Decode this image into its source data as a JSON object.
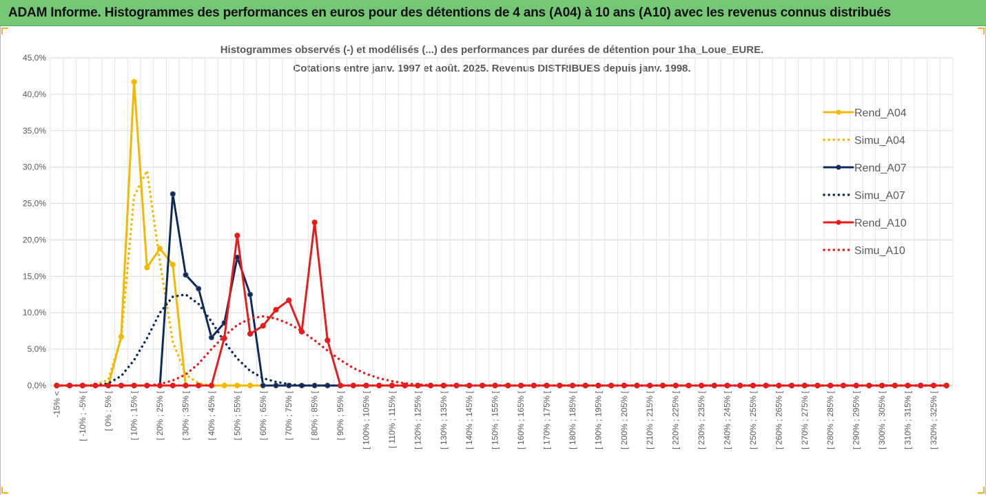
{
  "banner": {
    "title": "ADAM Informe. Histogrammes des performances en euros pour des détentions de 4 ans (A04) à 10 ans (A10) avec les revenus connus distribués"
  },
  "chart_data": {
    "type": "line",
    "title": "Histogrammes observés (-) et modélisés (...) des performances par durées de détention pour 1ha_Loue_EURE.",
    "subtitle": "Cotations entre janv. 1997 et août. 2025. Revenus DISTRIBUES depuis janv. 1998.",
    "ylim": [
      0,
      45
    ],
    "yticks": [
      "0,0%",
      "5,0%",
      "10,0%",
      "15,0%",
      "20,0%",
      "25,0%",
      "30,0%",
      "35,0%",
      "40,0%",
      "45,0%"
    ],
    "grid": true,
    "legend_position": "right",
    "categories": [
      "-15% <",
      "[ -15% ; -10% [",
      "[ -10% ; -5% [",
      "[ -5% ; 0% [",
      "[ 0% ; 5% [",
      "[ 5% ; 10% [",
      "[ 10% ; 15% [",
      "[ 15% ; 20% [",
      "[ 20% ; 25% [",
      "[ 25% ; 30% [",
      "[ 30% ; 35% [",
      "[ 35% ; 40% [",
      "[ 40% ; 45% [",
      "[ 45% ; 50% [",
      "[ 50% ; 55% [",
      "[ 55% ; 60% [",
      "[ 60% ; 65% [",
      "[ 65% ; 70% [",
      "[ 70% ; 75% [",
      "[ 75% ; 80% [",
      "[ 80% ; 85% [",
      "[ 85% ; 90% [",
      "[ 90% ; 95% [",
      "[ 95% ; 100% [",
      "[ 100% ; 105% [",
      "[ 105% ; 110% [",
      "[ 110% ; 115% [",
      "[ 115% ; 120% [",
      "[ 120% ; 125% [",
      "[ 125% ; 130% [",
      "[ 130% ; 135% [",
      "[ 135% ; 140% [",
      "[ 140% ; 145% [",
      "[ 145% ; 150% [",
      "[ 150% ; 155% [",
      "[ 155% ; 160% [",
      "[ 160% ; 165% [",
      "[ 165% ; 170% [",
      "[ 170% ; 175% [",
      "[ 175% ; 180% [",
      "[ 180% ; 185% [",
      "[ 185% ; 190% [",
      "[ 190% ; 195% [",
      "[ 195% ; 200% [",
      "[ 200% ; 205% [",
      "[ 205% ; 210% [",
      "[ 210% ; 215% [",
      "[ 215% ; 220% [",
      "[ 220% ; 225% [",
      "[ 225% ; 230% [",
      "[ 230% ; 235% [",
      "[ 235% ; 240% [",
      "[ 240% ; 245% [",
      "[ 245% ; 250% [",
      "[ 250% ; 255% [",
      "[ 255% ; 260% [",
      "[ 260% ; 265% [",
      "[ 265% ; 270% [",
      "[ 270% ; 275% [",
      "[ 275% ; 280% [",
      "[ 280% ; 285% [",
      "[ 285% ; 290% [",
      "[ 290% ; 295% [",
      "[ 295% ; 300% [",
      "[ 300% ; 305% [",
      "[ 305% ; 310% [",
      "[ 310% ; 315% [",
      "[ 315% ; 320% [",
      "[ 320% ; 325% [",
      "[ 325% ; 330% ["
    ],
    "series": [
      {
        "name": "Rend_A04",
        "color": "#f5b800",
        "style": "solid",
        "markers": true,
        "values": [
          0,
          0,
          0,
          0,
          0,
          6.7,
          41.7,
          16.2,
          18.8,
          16.6,
          0,
          0,
          0,
          0,
          0,
          0,
          0,
          0,
          0,
          0,
          0,
          0,
          0,
          0,
          0,
          0,
          0,
          0,
          0,
          0,
          0,
          0,
          0,
          0,
          0,
          0,
          0,
          0,
          0,
          0,
          0,
          0,
          0,
          0,
          0,
          0,
          0,
          0,
          0,
          0,
          0,
          0,
          0,
          0,
          0,
          0,
          0,
          0,
          0,
          0,
          0,
          0,
          0,
          0,
          0,
          0,
          0,
          0,
          0,
          0
        ]
      },
      {
        "name": "Simu_A04",
        "color": "#f5b800",
        "style": "dotted",
        "markers": false,
        "values": [
          0,
          0,
          0,
          0.1,
          0.8,
          6.5,
          26,
          29.5,
          17,
          6,
          1.5,
          0.3,
          0,
          0,
          0,
          0,
          0,
          0,
          0,
          0,
          0,
          0,
          0,
          0,
          0,
          0,
          0,
          0,
          0,
          0,
          0,
          0,
          0,
          0,
          0,
          0,
          0,
          0,
          0,
          0,
          0,
          0,
          0,
          0,
          0,
          0,
          0,
          0,
          0,
          0,
          0,
          0,
          0,
          0,
          0,
          0,
          0,
          0,
          0,
          0,
          0,
          0,
          0,
          0,
          0,
          0,
          0,
          0,
          0,
          0
        ]
      },
      {
        "name": "Rend_A07",
        "color": "#0d2a5b",
        "style": "solid",
        "markers": true,
        "values": [
          0,
          0,
          0,
          0,
          0,
          0,
          0,
          0,
          0,
          26.3,
          15.2,
          13.3,
          6.6,
          8.6,
          17.6,
          12.5,
          0,
          0,
          0,
          0,
          0,
          0,
          0,
          0,
          0,
          0,
          0,
          0,
          0,
          0,
          0,
          0,
          0,
          0,
          0,
          0,
          0,
          0,
          0,
          0,
          0,
          0,
          0,
          0,
          0,
          0,
          0,
          0,
          0,
          0,
          0,
          0,
          0,
          0,
          0,
          0,
          0,
          0,
          0,
          0,
          0,
          0,
          0,
          0,
          0,
          0,
          0,
          0,
          0,
          0
        ]
      },
      {
        "name": "Simu_A07",
        "color": "#0d2a5b",
        "style": "dotted",
        "markers": false,
        "values": [
          0,
          0,
          0,
          0,
          0.3,
          1.3,
          3.5,
          6.5,
          10,
          12.2,
          12.5,
          11.2,
          8.8,
          6,
          3.7,
          2,
          1,
          0.5,
          0.2,
          0,
          0,
          0,
          0,
          0,
          0,
          0,
          0,
          0,
          0,
          0,
          0,
          0,
          0,
          0,
          0,
          0,
          0,
          0,
          0,
          0,
          0,
          0,
          0,
          0,
          0,
          0,
          0,
          0,
          0,
          0,
          0,
          0,
          0,
          0,
          0,
          0,
          0,
          0,
          0,
          0,
          0,
          0,
          0,
          0,
          0,
          0,
          0,
          0,
          0,
          0
        ]
      },
      {
        "name": "Rend_A10",
        "color": "#e81b1b",
        "style": "solid",
        "markers": true,
        "values": [
          0,
          0,
          0,
          0,
          0,
          0,
          0,
          0,
          0,
          0,
          0,
          0,
          0,
          6.5,
          20.6,
          7.1,
          8.2,
          10.4,
          11.7,
          7.4,
          22.4,
          6.2,
          0,
          0,
          0,
          0,
          0,
          0,
          0,
          0,
          0,
          0,
          0,
          0,
          0,
          0,
          0,
          0,
          0,
          0,
          0,
          0,
          0,
          0,
          0,
          0,
          0,
          0,
          0,
          0,
          0,
          0,
          0,
          0,
          0,
          0,
          0,
          0,
          0,
          0,
          0,
          0,
          0,
          0,
          0,
          0,
          0,
          0,
          0,
          0
        ]
      },
      {
        "name": "Simu_A10",
        "color": "#e81b1b",
        "style": "dotted",
        "markers": false,
        "values": [
          0,
          0,
          0,
          0,
          0,
          0,
          0,
          0,
          0.2,
          0.7,
          1.5,
          3,
          5,
          6.8,
          8.3,
          9.2,
          9.5,
          9.2,
          8.5,
          7.5,
          6.2,
          4.8,
          3.5,
          2.4,
          1.6,
          1,
          0.6,
          0.3,
          0.15,
          0.05,
          0,
          0,
          0,
          0,
          0,
          0,
          0,
          0,
          0,
          0,
          0,
          0,
          0,
          0,
          0,
          0,
          0,
          0,
          0,
          0,
          0,
          0,
          0,
          0,
          0,
          0,
          0,
          0,
          0,
          0,
          0,
          0,
          0,
          0,
          0,
          0,
          0,
          0,
          0,
          0
        ]
      }
    ]
  }
}
